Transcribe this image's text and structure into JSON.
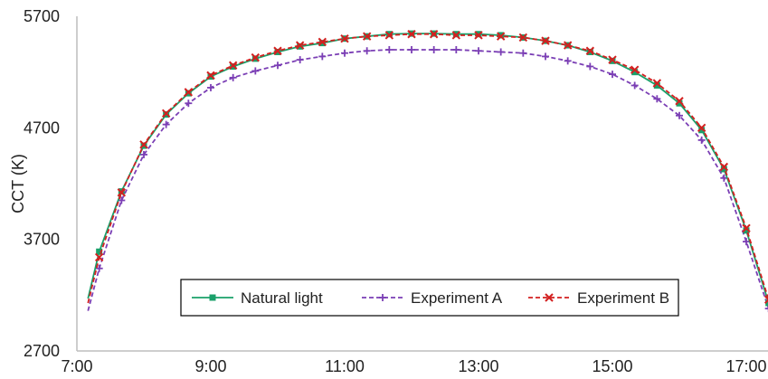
{
  "chart_data": {
    "type": "line",
    "title": "",
    "xlabel": "",
    "ylabel": "CCT (K)",
    "xlim": [
      "7:00",
      "17:30"
    ],
    "ylim": [
      2700,
      5700
    ],
    "x_ticks": [
      "7:00",
      "9:00",
      "11:00",
      "13:00",
      "15:00",
      "17:00"
    ],
    "y_ticks": [
      "2700",
      "3700",
      "4700",
      "5700"
    ],
    "grid": false,
    "legend_position": "bottom-center",
    "x": [
      "7:10",
      "7:20",
      "7:40",
      "8:00",
      "8:20",
      "8:40",
      "9:00",
      "9:20",
      "9:40",
      "10:00",
      "10:20",
      "10:40",
      "11:00",
      "11:20",
      "11:40",
      "12:00",
      "12:20",
      "12:40",
      "13:00",
      "13:20",
      "13:40",
      "14:00",
      "14:20",
      "14:40",
      "15:00",
      "15:20",
      "15:40",
      "16:00",
      "16:20",
      "16:40",
      "17:00",
      "17:20",
      "17:30"
    ],
    "series": [
      {
        "name": "Natural light",
        "color": "#1aa06a",
        "marker": "square",
        "dash": "solid",
        "values": [
          3170,
          3590,
          4130,
          4540,
          4820,
          5010,
          5160,
          5250,
          5320,
          5380,
          5430,
          5460,
          5500,
          5520,
          5540,
          5545,
          5545,
          5540,
          5540,
          5530,
          5510,
          5480,
          5440,
          5380,
          5300,
          5200,
          5080,
          4920,
          4680,
          4330,
          3780,
          3130,
          3060
        ]
      },
      {
        "name": "Experiment A",
        "color": "#7b3fb5",
        "marker": "plus",
        "dash": "dashed",
        "values": [
          3060,
          3440,
          4050,
          4460,
          4730,
          4920,
          5060,
          5150,
          5210,
          5260,
          5310,
          5340,
          5370,
          5390,
          5400,
          5400,
          5400,
          5400,
          5390,
          5380,
          5370,
          5340,
          5300,
          5250,
          5180,
          5080,
          4960,
          4810,
          4590,
          4250,
          3680,
          3080,
          2990
        ]
      },
      {
        "name": "Experiment B",
        "color": "#d32020",
        "marker": "x",
        "dash": "dashed",
        "values": [
          3130,
          3540,
          4120,
          4550,
          4830,
          5020,
          5170,
          5260,
          5330,
          5390,
          5440,
          5470,
          5500,
          5520,
          5530,
          5540,
          5540,
          5530,
          5530,
          5520,
          5510,
          5480,
          5440,
          5390,
          5310,
          5220,
          5100,
          4940,
          4700,
          4350,
          3800,
          3160,
          3090
        ]
      }
    ]
  }
}
